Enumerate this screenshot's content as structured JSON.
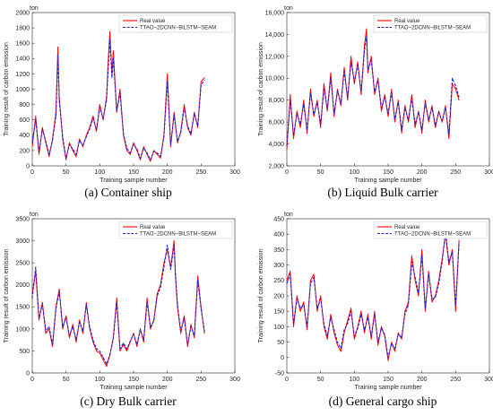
{
  "chart_data": [
    {
      "panel_id": "a",
      "caption": "(a) Container ship",
      "type": "line",
      "unit": "ton",
      "xlabel": "Training sample number",
      "ylabel": "Training result of carbon emission",
      "xlim": [
        0,
        300
      ],
      "ylim": [
        0,
        2000
      ],
      "xticks": [
        "0",
        "50",
        "100",
        "150",
        "200",
        "250",
        "300"
      ],
      "yticks": [
        "0",
        "200",
        "400",
        "600",
        "800",
        "1000",
        "1200",
        "1400",
        "1600",
        "1800",
        "2000"
      ],
      "legend_position": "top-right",
      "series": [
        {
          "name": "Real value",
          "color": "#ff0000",
          "dash": "solid",
          "x": [
            0,
            5,
            10,
            15,
            20,
            25,
            30,
            35,
            38,
            40,
            45,
            50,
            55,
            60,
            65,
            70,
            75,
            80,
            85,
            90,
            95,
            100,
            105,
            110,
            112,
            115,
            118,
            120,
            125,
            130,
            135,
            140,
            145,
            150,
            155,
            160,
            165,
            170,
            175,
            180,
            185,
            190,
            195,
            200,
            205,
            210,
            215,
            220,
            225,
            230,
            235,
            240,
            245,
            250,
            255
          ],
          "y": [
            250,
            650,
            150,
            500,
            300,
            120,
            350,
            700,
            1550,
            900,
            350,
            80,
            300,
            200,
            120,
            350,
            250,
            400,
            500,
            650,
            450,
            800,
            600,
            900,
            1300,
            1750,
            1200,
            1500,
            700,
            1000,
            400,
            200,
            150,
            300,
            200,
            80,
            250,
            150,
            60,
            200,
            150,
            100,
            400,
            1200,
            250,
            700,
            300,
            450,
            800,
            500,
            400,
            700,
            500,
            1100,
            1150
          ]
        },
        {
          "name": "TTAO−2DCNN−BiLSTM−SEAM",
          "color": "#1f1fd8",
          "dash": "dashed",
          "x": [
            0,
            5,
            10,
            15,
            20,
            25,
            30,
            35,
            38,
            40,
            45,
            50,
            55,
            60,
            65,
            70,
            75,
            80,
            85,
            90,
            95,
            100,
            105,
            110,
            112,
            115,
            118,
            120,
            125,
            130,
            135,
            140,
            145,
            150,
            155,
            160,
            165,
            170,
            175,
            180,
            185,
            190,
            195,
            200,
            205,
            210,
            215,
            220,
            225,
            230,
            235,
            240,
            245,
            250,
            255
          ],
          "y": [
            300,
            600,
            180,
            480,
            320,
            150,
            330,
            650,
            1450,
            850,
            380,
            100,
            280,
            220,
            150,
            330,
            270,
            380,
            480,
            620,
            470,
            760,
            620,
            860,
            1200,
            1650,
            1150,
            1400,
            720,
            950,
            420,
            230,
            170,
            280,
            220,
            100,
            230,
            170,
            80,
            190,
            170,
            120,
            380,
            1100,
            270,
            660,
            320,
            430,
            760,
            520,
            420,
            680,
            520,
            1050,
            1120
          ]
        }
      ]
    },
    {
      "panel_id": "b",
      "caption": "(b) Liquid Bulk carrier",
      "type": "line",
      "unit": "ton",
      "xlabel": "Training sample number",
      "ylabel": "Training result of carbon emission",
      "xlim": [
        0,
        300
      ],
      "ylim": [
        2000,
        16000
      ],
      "xticks": [
        "0",
        "50",
        "100",
        "150",
        "200",
        "250",
        "300"
      ],
      "yticks": [
        "2,000",
        "4,000",
        "6,000",
        "8,000",
        "10,000",
        "12,000",
        "14,000",
        "16,000"
      ],
      "legend_position": "top-right",
      "series": [
        {
          "name": "Real value",
          "color": "#ff0000",
          "dash": "solid",
          "x": [
            0,
            5,
            10,
            15,
            20,
            25,
            30,
            35,
            40,
            45,
            50,
            55,
            60,
            65,
            70,
            75,
            80,
            85,
            90,
            95,
            100,
            105,
            110,
            115,
            118,
            120,
            125,
            130,
            135,
            140,
            145,
            150,
            155,
            160,
            165,
            170,
            175,
            180,
            185,
            190,
            195,
            200,
            205,
            210,
            215,
            220,
            225,
            230,
            235,
            240,
            245,
            250,
            255
          ],
          "y": [
            3500,
            8500,
            4500,
            7000,
            5500,
            8000,
            5000,
            9000,
            6500,
            8000,
            5500,
            9500,
            7000,
            10500,
            6500,
            9000,
            7500,
            11000,
            8000,
            12000,
            9500,
            11500,
            8500,
            13000,
            14500,
            10500,
            12000,
            8500,
            10000,
            7000,
            8500,
            6500,
            9000,
            6000,
            8000,
            5000,
            7500,
            6000,
            8500,
            5500,
            7000,
            5000,
            8000,
            6000,
            7500,
            5500,
            7000,
            6000,
            7500,
            4500,
            9500,
            9000,
            8000
          ]
        },
        {
          "name": "TTAO−2DCNN−BiLSTM−SEAM",
          "color": "#1f1fd8",
          "dash": "dashed",
          "x": [
            0,
            5,
            10,
            15,
            20,
            25,
            30,
            35,
            40,
            45,
            50,
            55,
            60,
            65,
            70,
            75,
            80,
            85,
            90,
            95,
            100,
            105,
            110,
            115,
            118,
            120,
            125,
            130,
            135,
            140,
            145,
            150,
            155,
            160,
            165,
            170,
            175,
            180,
            185,
            190,
            195,
            200,
            205,
            210,
            215,
            220,
            225,
            230,
            235,
            240,
            245,
            250,
            255
          ],
          "y": [
            3800,
            8000,
            4800,
            6800,
            5800,
            7600,
            5300,
            8600,
            6700,
            7800,
            5800,
            9100,
            7200,
            10000,
            6800,
            8800,
            7700,
            10600,
            8200,
            11500,
            9700,
            11200,
            8800,
            12500,
            13800,
            10800,
            11600,
            8800,
            9800,
            7300,
            8300,
            6800,
            8700,
            6300,
            7800,
            5300,
            7300,
            6200,
            8200,
            5800,
            6900,
            5300,
            7700,
            6200,
            7300,
            5700,
            6900,
            6100,
            7300,
            4900,
            10000,
            9300,
            8300
          ]
        }
      ]
    },
    {
      "panel_id": "c",
      "caption": "(c) Dry Bulk carrier",
      "type": "line",
      "unit": "ton",
      "xlabel": "Training sample number",
      "ylabel": "Training result of carbon emission",
      "xlim": [
        0,
        300
      ],
      "ylim": [
        0,
        3500
      ],
      "xticks": [
        "0",
        "50",
        "100",
        "150",
        "200",
        "250",
        "300"
      ],
      "yticks": [
        "0",
        "500",
        "1000",
        "1500",
        "2000",
        "2500",
        "3000",
        "3500"
      ],
      "legend_position": "top-right",
      "series": [
        {
          "name": "Real value",
          "color": "#ff0000",
          "dash": "solid",
          "x": [
            0,
            5,
            10,
            15,
            20,
            25,
            30,
            35,
            40,
            45,
            50,
            55,
            60,
            65,
            70,
            75,
            80,
            85,
            90,
            95,
            100,
            105,
            110,
            115,
            120,
            125,
            130,
            135,
            140,
            145,
            150,
            155,
            160,
            165,
            170,
            175,
            180,
            185,
            190,
            195,
            200,
            205,
            210,
            212,
            215,
            220,
            225,
            230,
            235,
            240,
            245,
            250,
            255
          ],
          "y": [
            1800,
            2300,
            1200,
            1600,
            900,
            1000,
            600,
            1500,
            1900,
            1000,
            1300,
            800,
            1100,
            700,
            1200,
            900,
            1600,
            1000,
            700,
            500,
            450,
            300,
            150,
            400,
            800,
            1700,
            500,
            650,
            500,
            700,
            900,
            600,
            1000,
            700,
            1700,
            1000,
            1200,
            1800,
            2000,
            2500,
            2800,
            2400,
            3000,
            2200,
            1500,
            900,
            1300,
            600,
            1100,
            800,
            2200,
            1500,
            900
          ]
        },
        {
          "name": "TTAO−2DCNN−BiLSTM−SEAM",
          "color": "#1f1fd8",
          "dash": "dashed",
          "x": [
            0,
            5,
            10,
            15,
            20,
            25,
            30,
            35,
            40,
            45,
            50,
            55,
            60,
            65,
            70,
            75,
            80,
            85,
            90,
            95,
            100,
            105,
            110,
            115,
            120,
            125,
            130,
            135,
            140,
            145,
            150,
            155,
            160,
            165,
            170,
            175,
            180,
            185,
            190,
            195,
            200,
            205,
            210,
            212,
            215,
            220,
            225,
            230,
            235,
            240,
            245,
            250,
            255
          ],
          "y": [
            1700,
            2400,
            1250,
            1550,
            950,
            1050,
            650,
            1450,
            1850,
            1050,
            1250,
            850,
            1050,
            750,
            1150,
            950,
            1550,
            1050,
            750,
            550,
            500,
            350,
            200,
            420,
            780,
            1600,
            550,
            680,
            550,
            720,
            880,
            650,
            980,
            750,
            1600,
            1050,
            1180,
            1750,
            1950,
            2400,
            2900,
            2350,
            2900,
            2250,
            1550,
            950,
            1250,
            650,
            1050,
            850,
            2100,
            1450,
            950
          ]
        }
      ]
    },
    {
      "panel_id": "d",
      "caption": "(d) General cargo ship",
      "type": "line",
      "unit": "ton",
      "xlabel": "Training sample number",
      "ylabel": "Training result of carbon emission",
      "xlim": [
        0,
        300
      ],
      "ylim": [
        -50,
        450
      ],
      "xticks": [
        "0",
        "50",
        "100",
        "150",
        "200",
        "250",
        "300"
      ],
      "yticks": [
        "-50",
        "0",
        "50",
        "100",
        "150",
        "200",
        "250",
        "300",
        "350",
        "400",
        "450"
      ],
      "legend_position": "top-right",
      "series": [
        {
          "name": "Real value",
          "color": "#ff0000",
          "dash": "solid",
          "x": [
            0,
            5,
            10,
            15,
            20,
            25,
            30,
            35,
            40,
            45,
            50,
            55,
            60,
            65,
            70,
            75,
            80,
            85,
            90,
            95,
            100,
            105,
            110,
            115,
            120,
            125,
            130,
            135,
            140,
            145,
            150,
            155,
            160,
            165,
            170,
            175,
            180,
            185,
            190,
            195,
            200,
            205,
            210,
            215,
            220,
            225,
            230,
            235,
            240,
            245,
            250,
            255
          ],
          "y": [
            250,
            280,
            100,
            200,
            150,
            180,
            90,
            250,
            270,
            150,
            200,
            100,
            60,
            140,
            80,
            40,
            20,
            80,
            120,
            160,
            60,
            100,
            150,
            80,
            140,
            60,
            150,
            40,
            100,
            70,
            -10,
            50,
            20,
            80,
            60,
            150,
            180,
            330,
            250,
            200,
            350,
            150,
            280,
            180,
            200,
            250,
            320,
            400,
            300,
            350,
            150,
            380
          ]
        },
        {
          "name": "TTAO−2DCNN−BiLSTM−SEAM",
          "color": "#1f1fd8",
          "dash": "dashed",
          "x": [
            0,
            5,
            10,
            15,
            20,
            25,
            30,
            35,
            40,
            45,
            50,
            55,
            60,
            65,
            70,
            75,
            80,
            85,
            90,
            95,
            100,
            105,
            110,
            115,
            120,
            125,
            130,
            135,
            140,
            145,
            150,
            155,
            160,
            165,
            170,
            175,
            180,
            185,
            190,
            195,
            200,
            205,
            210,
            215,
            220,
            225,
            230,
            235,
            240,
            245,
            250,
            255
          ],
          "y": [
            240,
            270,
            110,
            190,
            160,
            170,
            100,
            240,
            260,
            160,
            190,
            110,
            70,
            130,
            90,
            50,
            30,
            90,
            110,
            150,
            70,
            95,
            140,
            90,
            130,
            70,
            140,
            50,
            95,
            75,
            0,
            45,
            30,
            75,
            65,
            140,
            170,
            310,
            260,
            210,
            330,
            160,
            270,
            190,
            195,
            240,
            310,
            410,
            310,
            340,
            170,
            370
          ]
        }
      ]
    }
  ]
}
